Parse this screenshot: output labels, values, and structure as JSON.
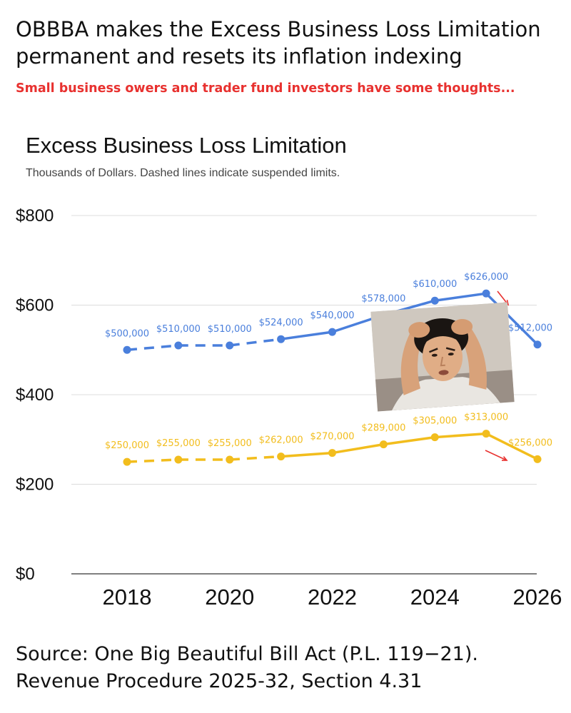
{
  "headline": {
    "line1": "OBBBA makes the Excess Business Loss Limitation",
    "line2": "permanent and resets its inflation indexing"
  },
  "subheadline": "Small business owers and trader fund investors have some thoughts...",
  "source": {
    "line1": "Source: One Big Beautiful Bill Act (P.L. 119−21).",
    "line2": "Revenue Procedure 2025-32, Section 4.31"
  },
  "meme": {
    "description_icon": "distressed-man-holding-head-icon"
  },
  "chart_data": {
    "type": "line",
    "title": "Excess Business Loss Limitation",
    "subtitle": "Thousands of Dollars. Dashed lines indicate suspended limits.",
    "xlabel": "",
    "ylabel": "",
    "x": [
      2018,
      2019,
      2020,
      2021,
      2022,
      2023,
      2024,
      2025,
      2026
    ],
    "x_ticks": [
      2018,
      2020,
      2022,
      2024,
      2026
    ],
    "x_tick_labels": [
      "2018",
      "2020",
      "2022",
      "2024",
      "2026"
    ],
    "y_ticks": [
      0,
      200,
      400,
      600,
      800
    ],
    "y_tick_labels": [
      "$0",
      "$200",
      "$400",
      "$600",
      "$800"
    ],
    "ylim": [
      0,
      800
    ],
    "xlim": [
      2017,
      2026.3
    ],
    "grid": true,
    "dashed_through": 2021,
    "series": [
      {
        "key": "joint",
        "color": "#4a7fdc",
        "values": [
          500,
          510,
          510,
          524,
          540,
          578,
          610,
          626,
          512
        ],
        "labels": [
          "$500,000",
          "$510,000",
          "$510,000",
          "$524,000",
          "$540,000",
          "$578,000",
          "$610,000",
          "$626,000",
          "$512,000"
        ]
      },
      {
        "key": "single",
        "color": "#f2bd1d",
        "values": [
          250,
          255,
          255,
          262,
          270,
          289,
          305,
          313,
          256
        ],
        "labels": [
          "$250,000",
          "$255,000",
          "$255,000",
          "$262,000",
          "$270,000",
          "$289,000",
          "$305,000",
          "$313,000",
          "$256,000"
        ]
      }
    ],
    "annotation_color": "#e8312f"
  }
}
